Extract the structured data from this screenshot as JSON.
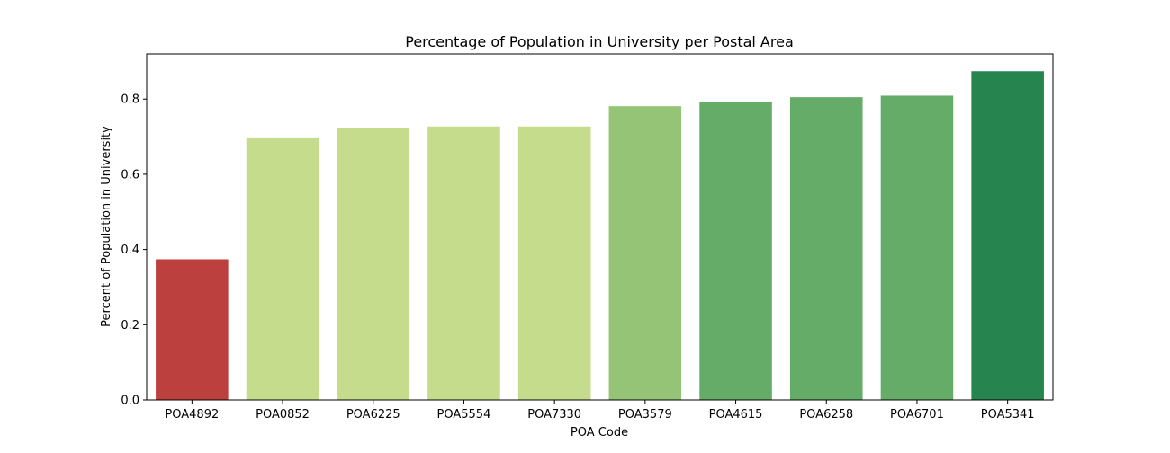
{
  "chart_data": {
    "type": "bar",
    "title": "Percentage of Population in University per Postal Area",
    "xlabel": "POA Code",
    "ylabel": "Percent of Population in University",
    "categories": [
      "POA4892",
      "POA0852",
      "POA6225",
      "POA5554",
      "POA7330",
      "POA3579",
      "POA4615",
      "POA6258",
      "POA6701",
      "POA5341"
    ],
    "values": [
      0.374,
      0.698,
      0.724,
      0.727,
      0.727,
      0.781,
      0.793,
      0.805,
      0.809,
      0.874
    ],
    "colors": [
      "#bc403d",
      "#c4dc8b",
      "#c4dc8b",
      "#c4dc8b",
      "#c4dc8b",
      "#95c477",
      "#64ac68",
      "#64ac68",
      "#64ac68",
      "#26844f"
    ],
    "ylim": [
      0,
      0.92
    ],
    "yticks": [
      "0.0",
      "0.2",
      "0.4",
      "0.6",
      "0.8"
    ],
    "ytick_values": [
      0.0,
      0.2,
      0.4,
      0.6,
      0.8
    ],
    "grid": false,
    "legend": "none"
  }
}
